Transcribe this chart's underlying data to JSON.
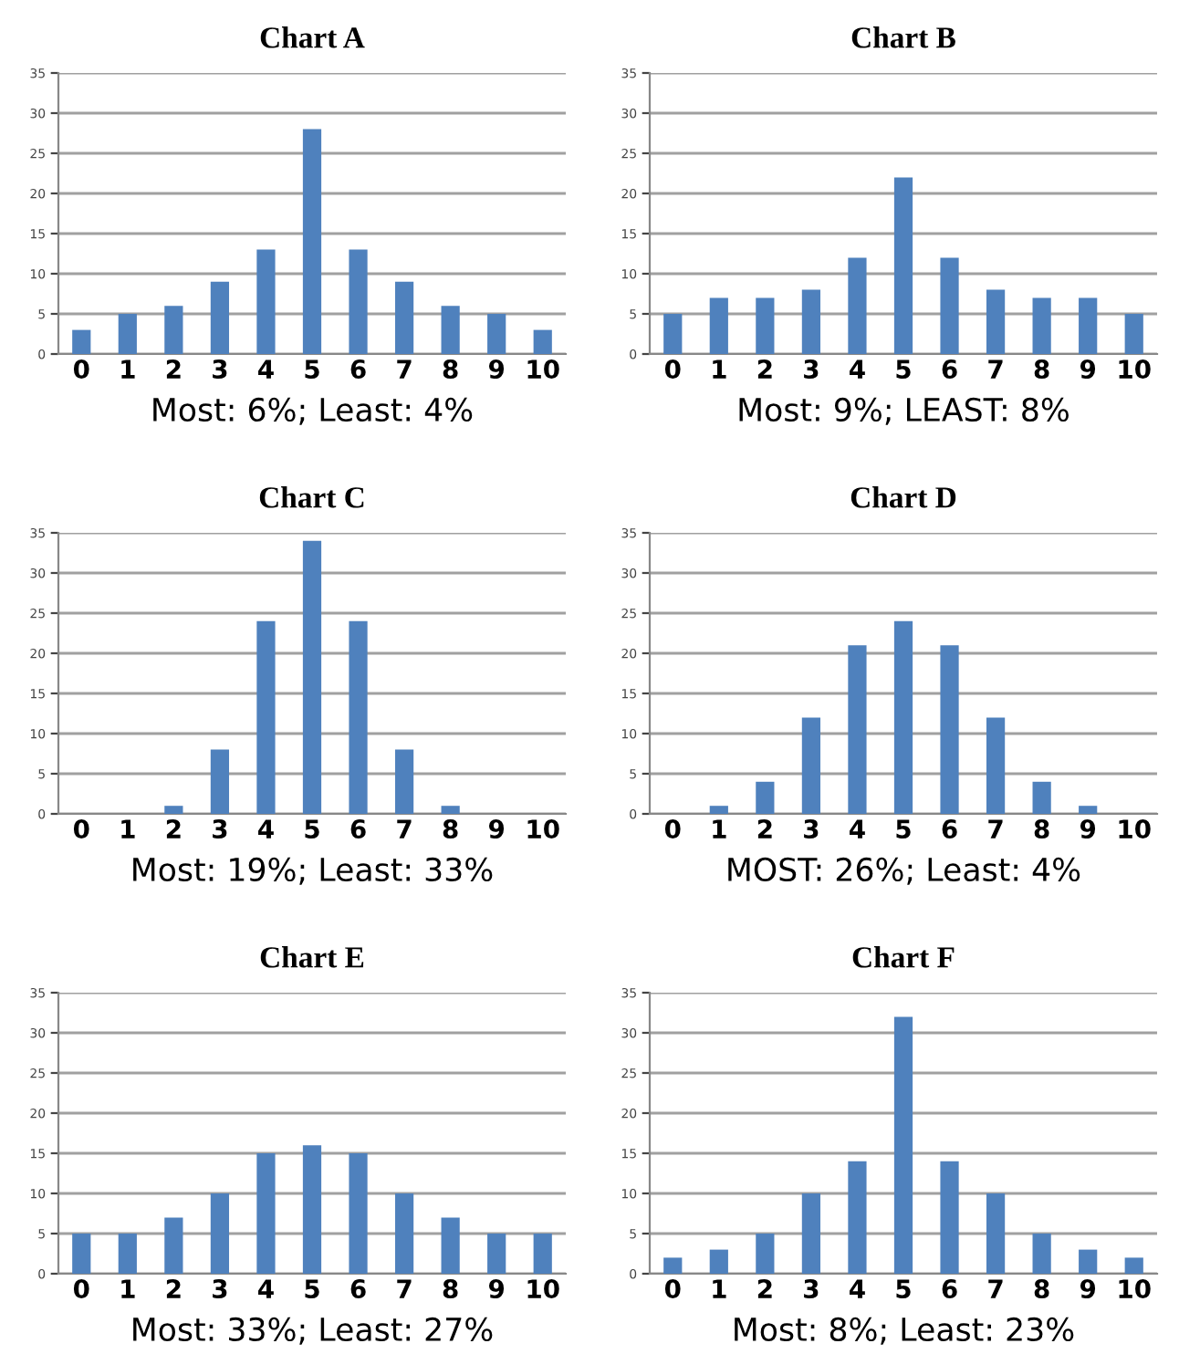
{
  "chart_data": [
    {
      "type": "bar",
      "title": "Chart A",
      "categories": [
        "0",
        "1",
        "2",
        "3",
        "4",
        "5",
        "6",
        "7",
        "8",
        "9",
        "10"
      ],
      "values": [
        3,
        5,
        6,
        9,
        13,
        28,
        13,
        9,
        6,
        5,
        3
      ],
      "color": "#4f81bd",
      "ylim": [
        0,
        35
      ],
      "yticks": [
        0,
        5,
        10,
        15,
        20,
        25,
        30,
        35
      ],
      "grid": "y",
      "annotations": [
        "Most: 6%; Least: 4%"
      ]
    },
    {
      "type": "bar",
      "title": "Chart B",
      "categories": [
        "0",
        "1",
        "2",
        "3",
        "4",
        "5",
        "6",
        "7",
        "8",
        "9",
        "10"
      ],
      "values": [
        5,
        7,
        7,
        8,
        12,
        22,
        12,
        8,
        7,
        7,
        5
      ],
      "color": "#4f81bd",
      "ylim": [
        0,
        35
      ],
      "yticks": [
        0,
        5,
        10,
        15,
        20,
        25,
        30,
        35
      ],
      "grid": "y",
      "annotations": [
        "Most: 9%; LEAST: 8%"
      ]
    },
    {
      "type": "bar",
      "title": "Chart C",
      "categories": [
        "0",
        "1",
        "2",
        "3",
        "4",
        "5",
        "6",
        "7",
        "8",
        "9",
        "10"
      ],
      "values": [
        0,
        0,
        1,
        8,
        24,
        34,
        24,
        8,
        1,
        0,
        0
      ],
      "color": "#4f81bd",
      "ylim": [
        0,
        35
      ],
      "yticks": [
        0,
        5,
        10,
        15,
        20,
        25,
        30,
        35
      ],
      "grid": "y",
      "annotations": [
        "Most: 19%; Least: 33%"
      ]
    },
    {
      "type": "bar",
      "title": "Chart D",
      "categories": [
        "0",
        "1",
        "2",
        "3",
        "4",
        "5",
        "6",
        "7",
        "8",
        "9",
        "10"
      ],
      "values": [
        0,
        1,
        4,
        12,
        21,
        24,
        21,
        12,
        4,
        1,
        0
      ],
      "color": "#4f81bd",
      "ylim": [
        0,
        35
      ],
      "yticks": [
        0,
        5,
        10,
        15,
        20,
        25,
        30,
        35
      ],
      "grid": "y",
      "annotations": [
        "MOST: 26%; Least: 4%"
      ]
    },
    {
      "type": "bar",
      "title": "Chart E",
      "categories": [
        "0",
        "1",
        "2",
        "3",
        "4",
        "5",
        "6",
        "7",
        "8",
        "9",
        "10"
      ],
      "values": [
        5,
        5,
        7,
        10,
        15,
        16,
        15,
        10,
        7,
        5,
        5
      ],
      "color": "#4f81bd",
      "ylim": [
        0,
        35
      ],
      "yticks": [
        0,
        5,
        10,
        15,
        20,
        25,
        30,
        35
      ],
      "grid": "y",
      "annotations": [
        "Most: 33%; Least: 27%"
      ]
    },
    {
      "type": "bar",
      "title": "Chart F",
      "categories": [
        "0",
        "1",
        "2",
        "3",
        "4",
        "5",
        "6",
        "7",
        "8",
        "9",
        "10"
      ],
      "values": [
        2,
        3,
        5,
        10,
        14,
        32,
        14,
        10,
        5,
        3,
        2
      ],
      "color": "#4f81bd",
      "ylim": [
        0,
        35
      ],
      "yticks": [
        0,
        5,
        10,
        15,
        20,
        25,
        30,
        35
      ],
      "grid": "y",
      "annotations": [
        "Most: 8%; Least: 23%"
      ]
    }
  ]
}
